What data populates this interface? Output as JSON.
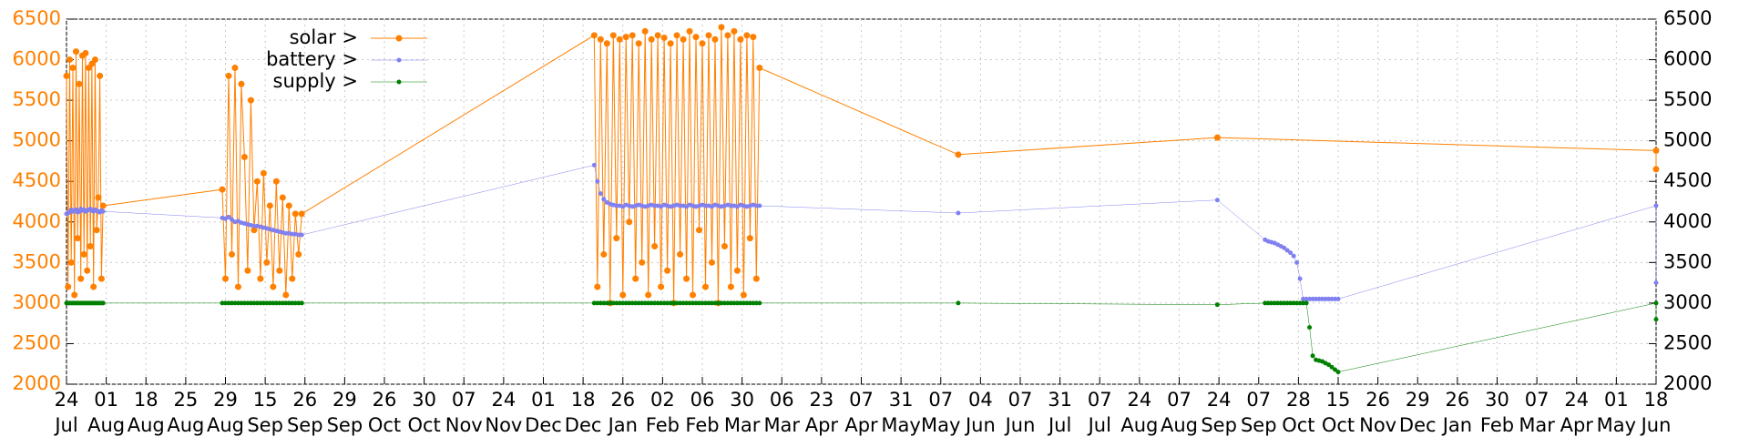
{
  "chart_data": {
    "type": "line",
    "xlim": [
      0,
      1000
    ],
    "xticks": [
      {
        "value": 0,
        "label": "24"
      },
      {
        "value": 25,
        "label": "01"
      },
      {
        "value": 50,
        "label": "18"
      },
      {
        "value": 75,
        "label": "25"
      },
      {
        "value": 100,
        "label": "29"
      },
      {
        "value": 125,
        "label": "15"
      },
      {
        "value": 150,
        "label": "26"
      },
      {
        "value": 175,
        "label": "29"
      },
      {
        "value": 200,
        "label": "26"
      },
      {
        "value": 225,
        "label": "30"
      },
      {
        "value": 250,
        "label": "07"
      },
      {
        "value": 275,
        "label": "24"
      },
      {
        "value": 300,
        "label": "01"
      },
      {
        "value": 325,
        "label": "18"
      },
      {
        "value": 350,
        "label": "26"
      },
      {
        "value": 375,
        "label": "02"
      },
      {
        "value": 400,
        "label": "06"
      },
      {
        "value": 425,
        "label": "30"
      },
      {
        "value": 450,
        "label": "06"
      },
      {
        "value": 475,
        "label": "23"
      },
      {
        "value": 500,
        "label": "07"
      },
      {
        "value": 525,
        "label": "31"
      },
      {
        "value": 550,
        "label": "07"
      },
      {
        "value": 575,
        "label": "04"
      },
      {
        "value": 600,
        "label": "07"
      },
      {
        "value": 625,
        "label": "31"
      },
      {
        "value": 650,
        "label": "07"
      },
      {
        "value": 675,
        "label": "24"
      },
      {
        "value": 700,
        "label": "07"
      },
      {
        "value": 725,
        "label": "24"
      },
      {
        "value": 750,
        "label": "07"
      },
      {
        "value": 775,
        "label": "28"
      },
      {
        "value": 800,
        "label": "15"
      },
      {
        "value": 825,
        "label": "26"
      },
      {
        "value": 850,
        "label": "29"
      },
      {
        "value": 875,
        "label": "26"
      },
      {
        "value": 900,
        "label": "30"
      },
      {
        "value": 925,
        "label": "07"
      },
      {
        "value": 950,
        "label": "24"
      },
      {
        "value": 975,
        "label": "01"
      },
      {
        "value": 1000,
        "label": "18"
      }
    ],
    "xtick_months": [
      "Jul",
      "Aug",
      "Aug",
      "Aug",
      "Aug",
      "Sep",
      "Sep",
      "Sep",
      "Oct",
      "Oct",
      "Nov",
      "Nov",
      "Dec",
      "Dec",
      "Jan",
      "Feb",
      "Feb",
      "Mar",
      "Mar",
      "Apr",
      "Apr",
      "May",
      "May",
      "Jun",
      "Jun",
      "Jul",
      "Jul",
      "Aug",
      "Aug",
      "Sep",
      "Sep",
      "Oct",
      "Oct",
      "Nov",
      "Dec",
      "Jan",
      "Feb",
      "Mar",
      "Apr",
      "May",
      "Jun"
    ],
    "ylim": [
      2000,
      6500
    ],
    "yticks": [
      2000,
      2500,
      3000,
      3500,
      4000,
      4500,
      5000,
      5500,
      6000,
      6500
    ],
    "grid": true,
    "mirror_y_axis": true,
    "legend_position": "top-left",
    "series": [
      {
        "name": "solar >",
        "color": "#ff8000",
        "point_radius": 3.5,
        "line_width": 1,
        "x": [
          0,
          1,
          2,
          3,
          4,
          5,
          6,
          7,
          8,
          9,
          10,
          11,
          12,
          13,
          14,
          15,
          16,
          17,
          18,
          19,
          20,
          21,
          22,
          23,
          98,
          100,
          102,
          104,
          106,
          108,
          110,
          112,
          114,
          116,
          118,
          120,
          122,
          124,
          126,
          128,
          130,
          132,
          134,
          136,
          138,
          140,
          142,
          144,
          146,
          148,
          332,
          334,
          336,
          338,
          340,
          342,
          344,
          346,
          348,
          350,
          352,
          354,
          356,
          358,
          360,
          362,
          364,
          366,
          368,
          370,
          372,
          374,
          376,
          378,
          380,
          382,
          384,
          386,
          388,
          390,
          392,
          394,
          396,
          398,
          400,
          402,
          404,
          406,
          408,
          410,
          412,
          414,
          416,
          418,
          420,
          422,
          424,
          426,
          428,
          430,
          432,
          434,
          436,
          561,
          724,
          1000,
          1000
        ],
        "values": [
          5800,
          3200,
          6000,
          3500,
          5900,
          3100,
          6100,
          3800,
          5700,
          3300,
          6050,
          3600,
          6080,
          3400,
          5900,
          3700,
          5950,
          3200,
          6000,
          3900,
          4300,
          5800,
          3300,
          4200,
          4400,
          3300,
          5800,
          3600,
          5900,
          3200,
          5700,
          4800,
          3400,
          5500,
          3900,
          4500,
          3300,
          4600,
          3500,
          4200,
          3200,
          4500,
          3400,
          4300,
          3100,
          4200,
          3300,
          4100,
          3600,
          4100,
          6300,
          3200,
          6250,
          3600,
          6200,
          3000,
          6300,
          3800,
          6250,
          3100,
          6280,
          4000,
          6300,
          3300,
          6200,
          3500,
          6350,
          3100,
          6250,
          3700,
          6300,
          3200,
          6270,
          3400,
          6200,
          3000,
          6300,
          3600,
          6250,
          3300,
          6350,
          3100,
          6280,
          3900,
          6200,
          3200,
          6300,
          3500,
          6250,
          3000,
          6400,
          3700,
          6300,
          3200,
          6350,
          3400,
          6250,
          3100,
          6300,
          3800,
          6280,
          3300,
          5900,
          4830,
          5040,
          4880,
          4650
        ]
      },
      {
        "name": "battery >",
        "color": "#8080f0",
        "point_radius": 2.5,
        "line_width": 0.5,
        "x": [
          0,
          1,
          2,
          3,
          4,
          5,
          6,
          7,
          8,
          9,
          10,
          11,
          12,
          13,
          14,
          15,
          16,
          17,
          18,
          19,
          20,
          21,
          22,
          23,
          98,
          100,
          102,
          104,
          106,
          108,
          110,
          112,
          114,
          116,
          118,
          120,
          122,
          124,
          126,
          128,
          130,
          132,
          134,
          136,
          138,
          140,
          142,
          144,
          146,
          148,
          332,
          334,
          336,
          338,
          340,
          342,
          344,
          346,
          348,
          350,
          352,
          354,
          356,
          358,
          360,
          362,
          364,
          366,
          368,
          370,
          372,
          374,
          376,
          378,
          380,
          382,
          384,
          386,
          388,
          390,
          392,
          394,
          396,
          398,
          400,
          402,
          404,
          406,
          408,
          410,
          412,
          414,
          416,
          418,
          420,
          422,
          424,
          426,
          428,
          430,
          432,
          434,
          436,
          561,
          724,
          754,
          756,
          758,
          760,
          762,
          764,
          766,
          768,
          770,
          772,
          774,
          776,
          778,
          780,
          782,
          784,
          786,
          788,
          790,
          792,
          794,
          796,
          798,
          800,
          1000,
          1000
        ],
        "values": [
          4100,
          4110,
          4120,
          4150,
          4130,
          4140,
          4150,
          4120,
          4130,
          4160,
          4140,
          4150,
          4130,
          4140,
          4150,
          4160,
          4140,
          4130,
          4150,
          4140,
          4130,
          4120,
          4140,
          4130,
          4050,
          4040,
          4060,
          4030,
          4000,
          4010,
          3990,
          3980,
          3970,
          3960,
          3950,
          3950,
          3940,
          3930,
          3920,
          3910,
          3900,
          3890,
          3880,
          3870,
          3860,
          3860,
          3850,
          3850,
          3840,
          3840,
          4700,
          4500,
          4350,
          4280,
          4240,
          4220,
          4210,
          4200,
          4200,
          4190,
          4210,
          4200,
          4190,
          4200,
          4210,
          4200,
          4190,
          4200,
          4210,
          4200,
          4200,
          4190,
          4210,
          4200,
          4190,
          4200,
          4210,
          4200,
          4200,
          4190,
          4210,
          4200,
          4190,
          4200,
          4210,
          4200,
          4200,
          4190,
          4210,
          4200,
          4190,
          4200,
          4210,
          4200,
          4200,
          4190,
          4210,
          4200,
          4190,
          4200,
          4210,
          4200,
          4200,
          4110,
          4270,
          3780,
          3760,
          3750,
          3740,
          3720,
          3700,
          3680,
          3650,
          3620,
          3580,
          3500,
          3300,
          3050,
          3050,
          3050,
          3050,
          3050,
          3050,
          3050,
          3050,
          3050,
          3050,
          3050,
          3050,
          4200,
          3250
        ]
      },
      {
        "name": "supply >",
        "color": "#008000",
        "point_radius": 2.5,
        "line_width": 0.5,
        "x": [
          0,
          1,
          2,
          3,
          4,
          5,
          6,
          7,
          8,
          9,
          10,
          11,
          12,
          13,
          14,
          15,
          16,
          17,
          18,
          19,
          20,
          21,
          22,
          23,
          98,
          100,
          102,
          104,
          106,
          108,
          110,
          112,
          114,
          116,
          118,
          120,
          122,
          124,
          126,
          128,
          130,
          132,
          134,
          136,
          138,
          140,
          142,
          144,
          146,
          148,
          332,
          334,
          336,
          338,
          340,
          342,
          344,
          346,
          348,
          350,
          352,
          354,
          356,
          358,
          360,
          362,
          364,
          366,
          368,
          370,
          372,
          374,
          376,
          378,
          380,
          382,
          384,
          386,
          388,
          390,
          392,
          394,
          396,
          398,
          400,
          402,
          404,
          406,
          408,
          410,
          412,
          414,
          416,
          418,
          420,
          422,
          424,
          426,
          428,
          430,
          432,
          434,
          436,
          561,
          724,
          754,
          756,
          758,
          760,
          762,
          764,
          766,
          768,
          770,
          772,
          774,
          776,
          778,
          780,
          782,
          784,
          786,
          788,
          790,
          792,
          794,
          796,
          798,
          800,
          1000,
          1000
        ],
        "values": [
          3000,
          3000,
          3000,
          3000,
          3000,
          3000,
          3000,
          3000,
          3000,
          3000,
          3000,
          3000,
          3000,
          3000,
          3000,
          3000,
          3000,
          3000,
          3000,
          3000,
          3000,
          3000,
          3000,
          3000,
          3000,
          3000,
          3000,
          3000,
          3000,
          3000,
          3000,
          3000,
          3000,
          3000,
          3000,
          3000,
          3000,
          3000,
          3000,
          3000,
          3000,
          3000,
          3000,
          3000,
          3000,
          3000,
          3000,
          3000,
          3000,
          3000,
          3000,
          3000,
          3000,
          3000,
          3000,
          3000,
          3000,
          3000,
          3000,
          3000,
          3000,
          3000,
          3000,
          3000,
          3000,
          3000,
          3000,
          3000,
          3000,
          3000,
          3000,
          3000,
          3000,
          3000,
          3000,
          3000,
          3000,
          3000,
          3000,
          3000,
          3000,
          3000,
          3000,
          3000,
          3000,
          3000,
          3000,
          3000,
          3000,
          3000,
          3000,
          3000,
          3000,
          3000,
          3000,
          3000,
          3000,
          3000,
          3000,
          3000,
          3000,
          3000,
          3000,
          3000,
          2980,
          3000,
          3000,
          3000,
          3000,
          3000,
          3000,
          3000,
          3000,
          3000,
          3000,
          3000,
          3000,
          3000,
          3000,
          2700,
          2350,
          2300,
          2290,
          2280,
          2260,
          2240,
          2210,
          2180,
          2150,
          3000,
          2800
        ]
      }
    ]
  }
}
